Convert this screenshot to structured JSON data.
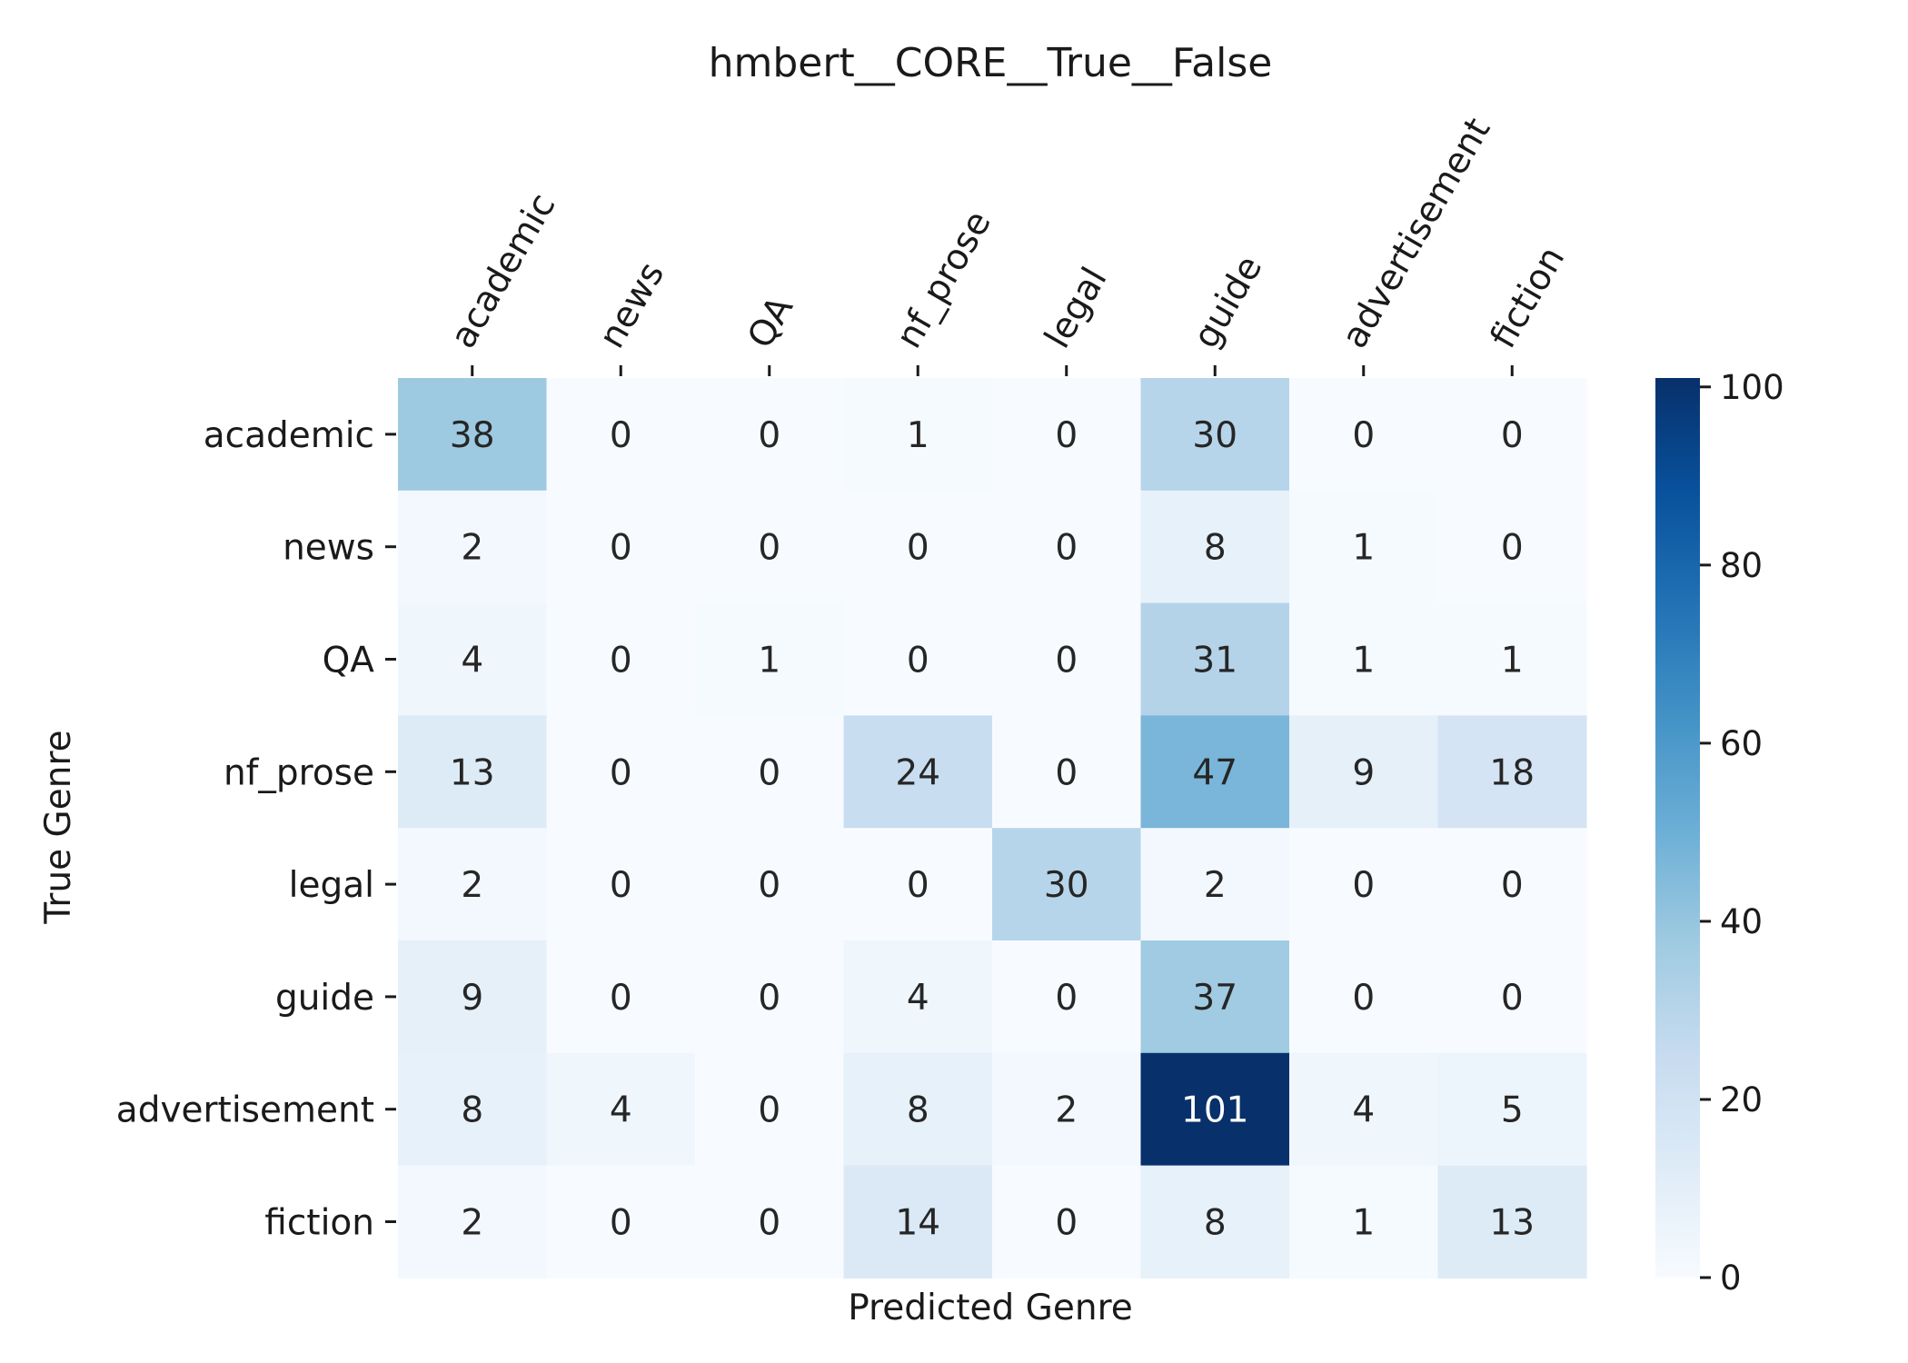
{
  "chart_data": {
    "type": "heatmap",
    "title": "hmbert__CORE__True__False",
    "xlabel": "Predicted Genre",
    "ylabel": "True Genre",
    "x_categories": [
      "academic",
      "news",
      "QA",
      "nf_prose",
      "legal",
      "guide",
      "advertisement",
      "fiction"
    ],
    "y_categories": [
      "academic",
      "news",
      "QA",
      "nf_prose",
      "legal",
      "guide",
      "advertisement",
      "fiction"
    ],
    "values": [
      [
        38,
        0,
        0,
        1,
        0,
        30,
        0,
        0
      ],
      [
        2,
        0,
        0,
        0,
        0,
        8,
        1,
        0
      ],
      [
        4,
        0,
        1,
        0,
        0,
        31,
        1,
        1
      ],
      [
        13,
        0,
        0,
        24,
        0,
        47,
        9,
        18
      ],
      [
        2,
        0,
        0,
        0,
        30,
        2,
        0,
        0
      ],
      [
        9,
        0,
        0,
        4,
        0,
        37,
        0,
        0
      ],
      [
        8,
        4,
        0,
        8,
        2,
        101,
        4,
        5
      ],
      [
        2,
        0,
        0,
        14,
        0,
        8,
        1,
        13
      ]
    ],
    "color_range": [
      0,
      101
    ],
    "colormap": "Blues",
    "colorbar_ticks": [
      0,
      20,
      40,
      60,
      80,
      100
    ],
    "x_tick_position": "top",
    "x_tick_rotation_deg": 60
  }
}
